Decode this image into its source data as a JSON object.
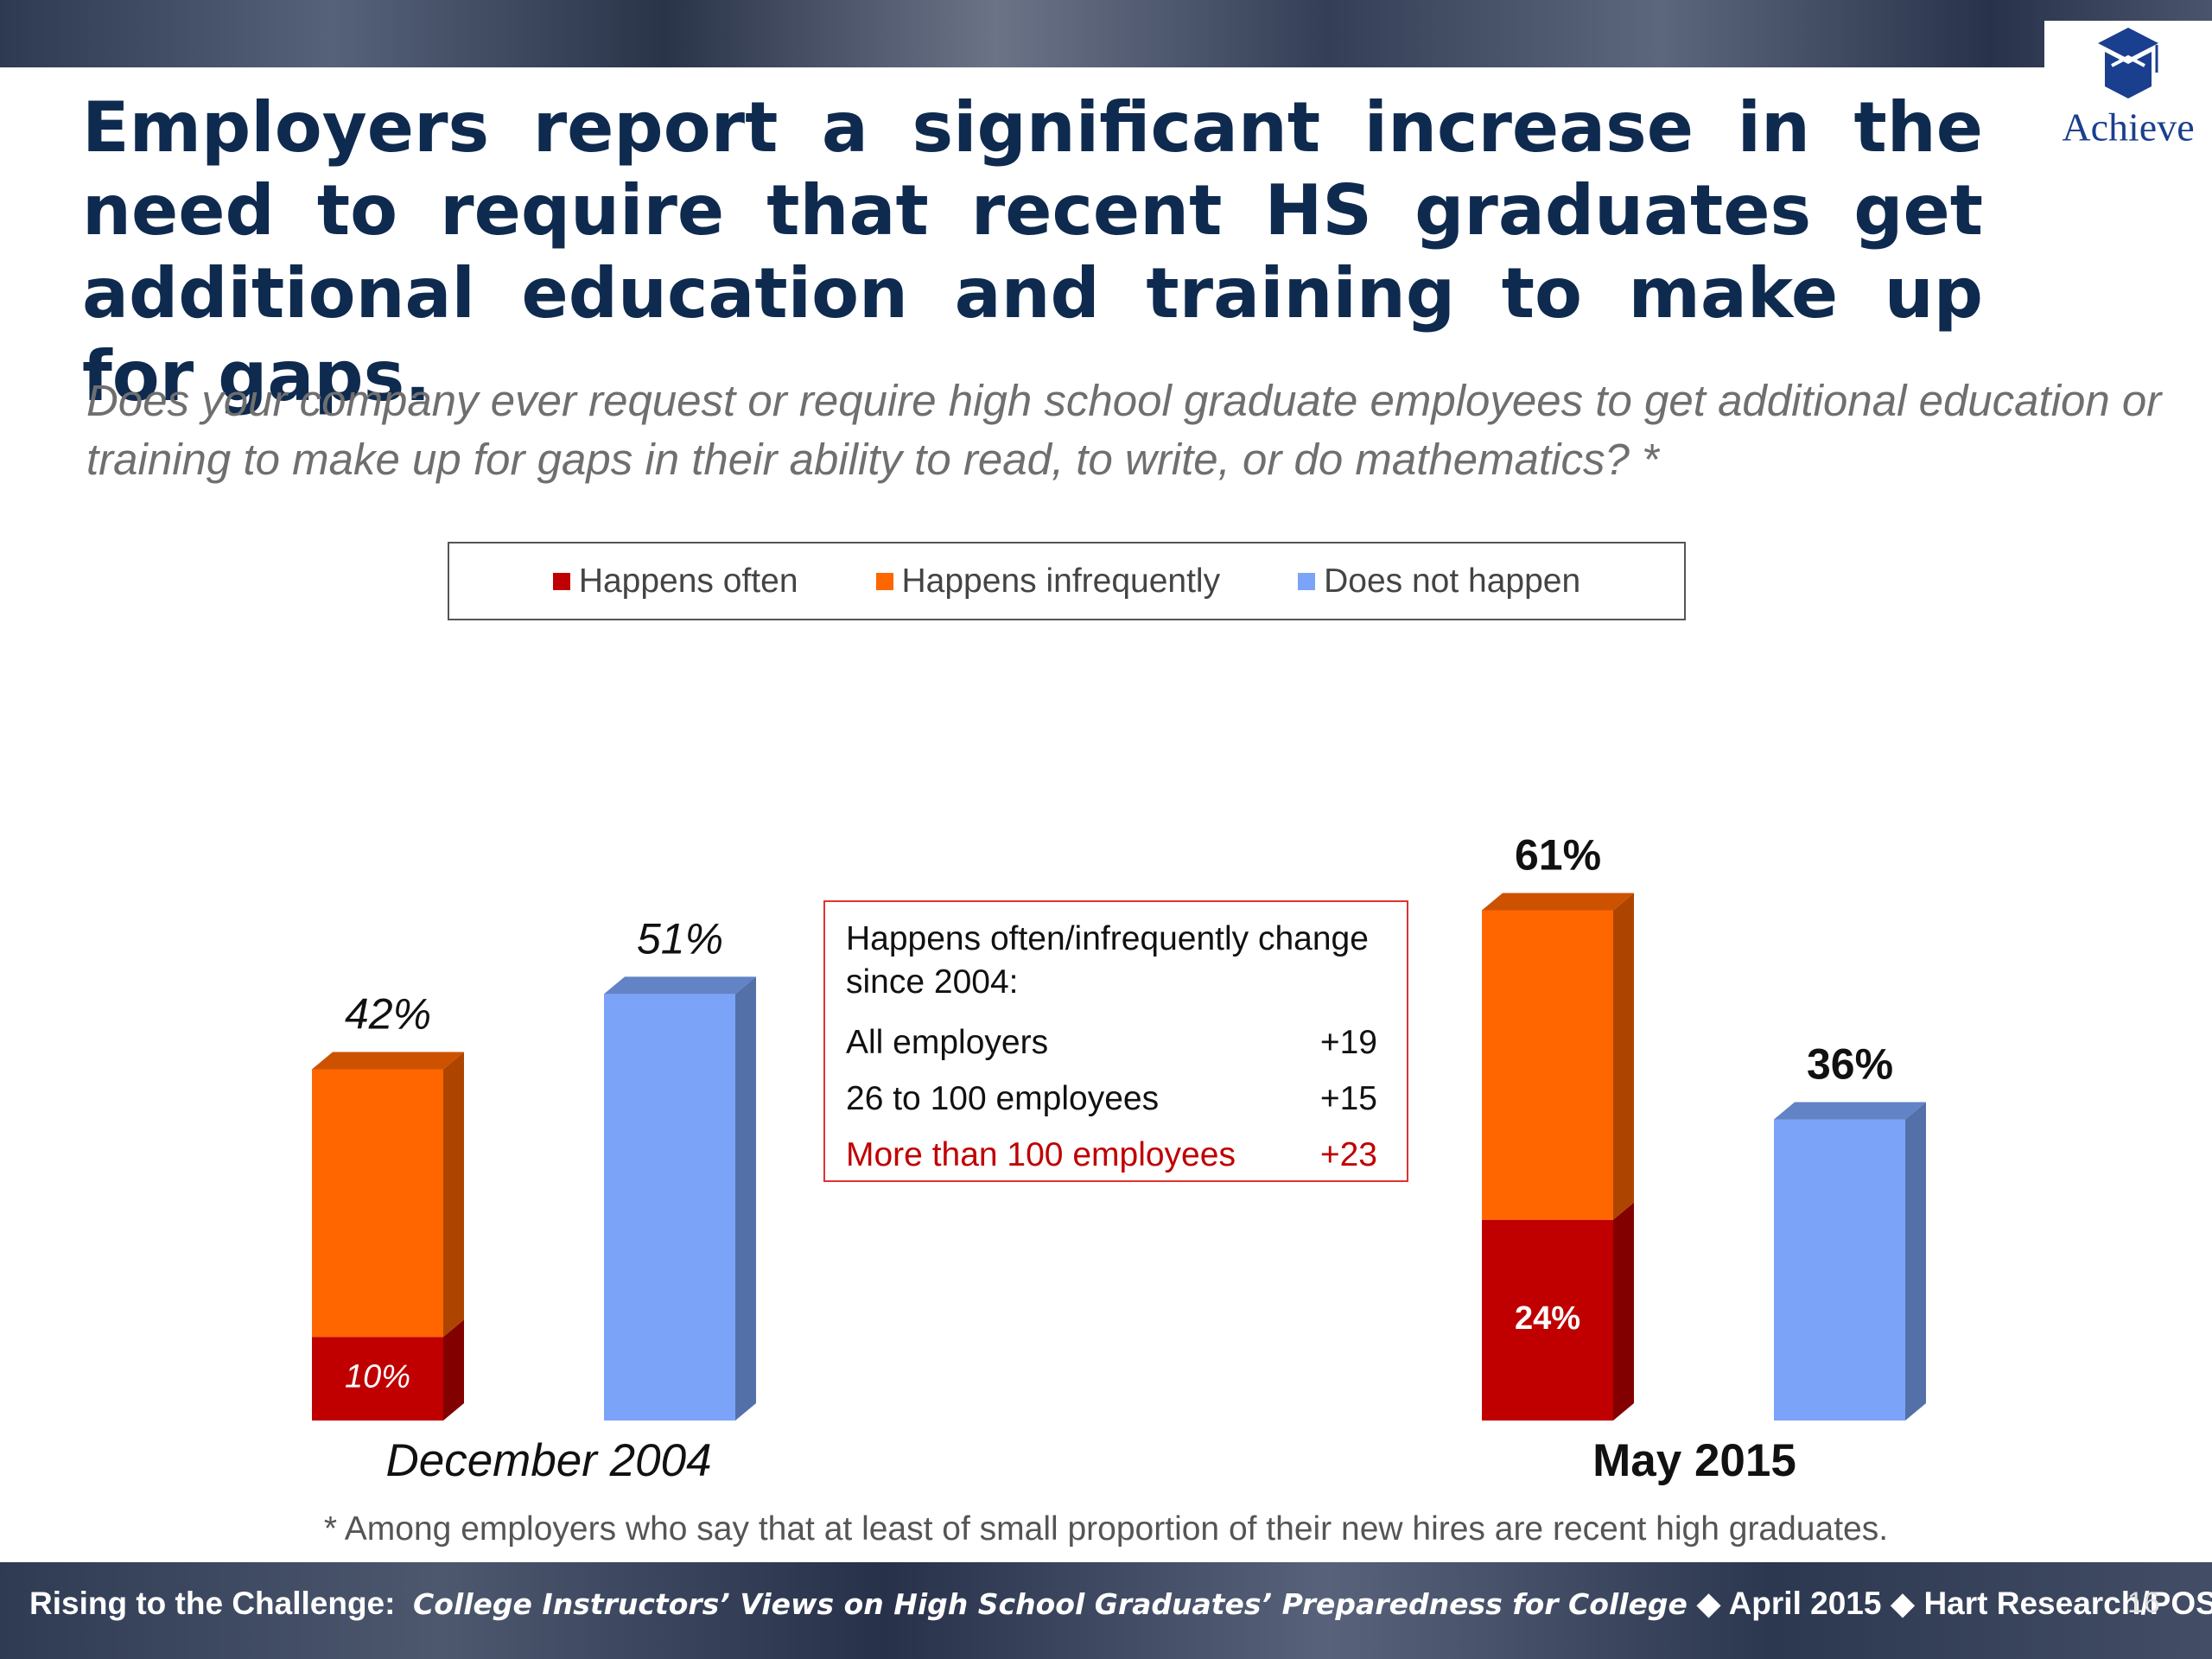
{
  "chart_data": {
    "type": "bar",
    "title": "Employers report a significant increase in the need to require that recent HS graduates get additional education and training to make up for gaps.",
    "subtitle": "Does your company ever request or require high school graduate employees to get additional education or training to make up for gaps in their ability to read, to write, or do mathematics? *",
    "categories": [
      "December 2004",
      "May 2015"
    ],
    "series": [
      {
        "name": "Happens often",
        "color": "#c00000",
        "values": [
          10,
          24
        ],
        "value_labels": [
          "10%",
          "24%"
        ]
      },
      {
        "name": "Happens infrequently",
        "color": "#ff6600",
        "values": [
          32,
          37
        ]
      },
      {
        "name": "Does not happen",
        "color": "#7ba4f8",
        "values": [
          51,
          36
        ],
        "value_labels": [
          "51%",
          "36%"
        ]
      }
    ],
    "totals": [
      42,
      61
    ],
    "total_labels": [
      "42%",
      "61%"
    ],
    "annotation": {
      "title": "Happens often/infrequently change since 2004:",
      "rows": [
        {
          "label": "All employers",
          "value": "+19"
        },
        {
          "label": "26 to 100 employees",
          "value": "+15"
        },
        {
          "label": "More than 100 employees",
          "value": "+23"
        }
      ]
    },
    "footnote": "* Among employers who say that at least of small proportion of their new hires are recent high graduates."
  },
  "logo": "Achieve",
  "footer": {
    "lead": "Rising to the Challenge:",
    "report": "College Instructors’ Views on High School Graduates’ Preparedness for College",
    "meta": "◆ April 2015 ◆ Hart Research/POS",
    "page": "16"
  }
}
